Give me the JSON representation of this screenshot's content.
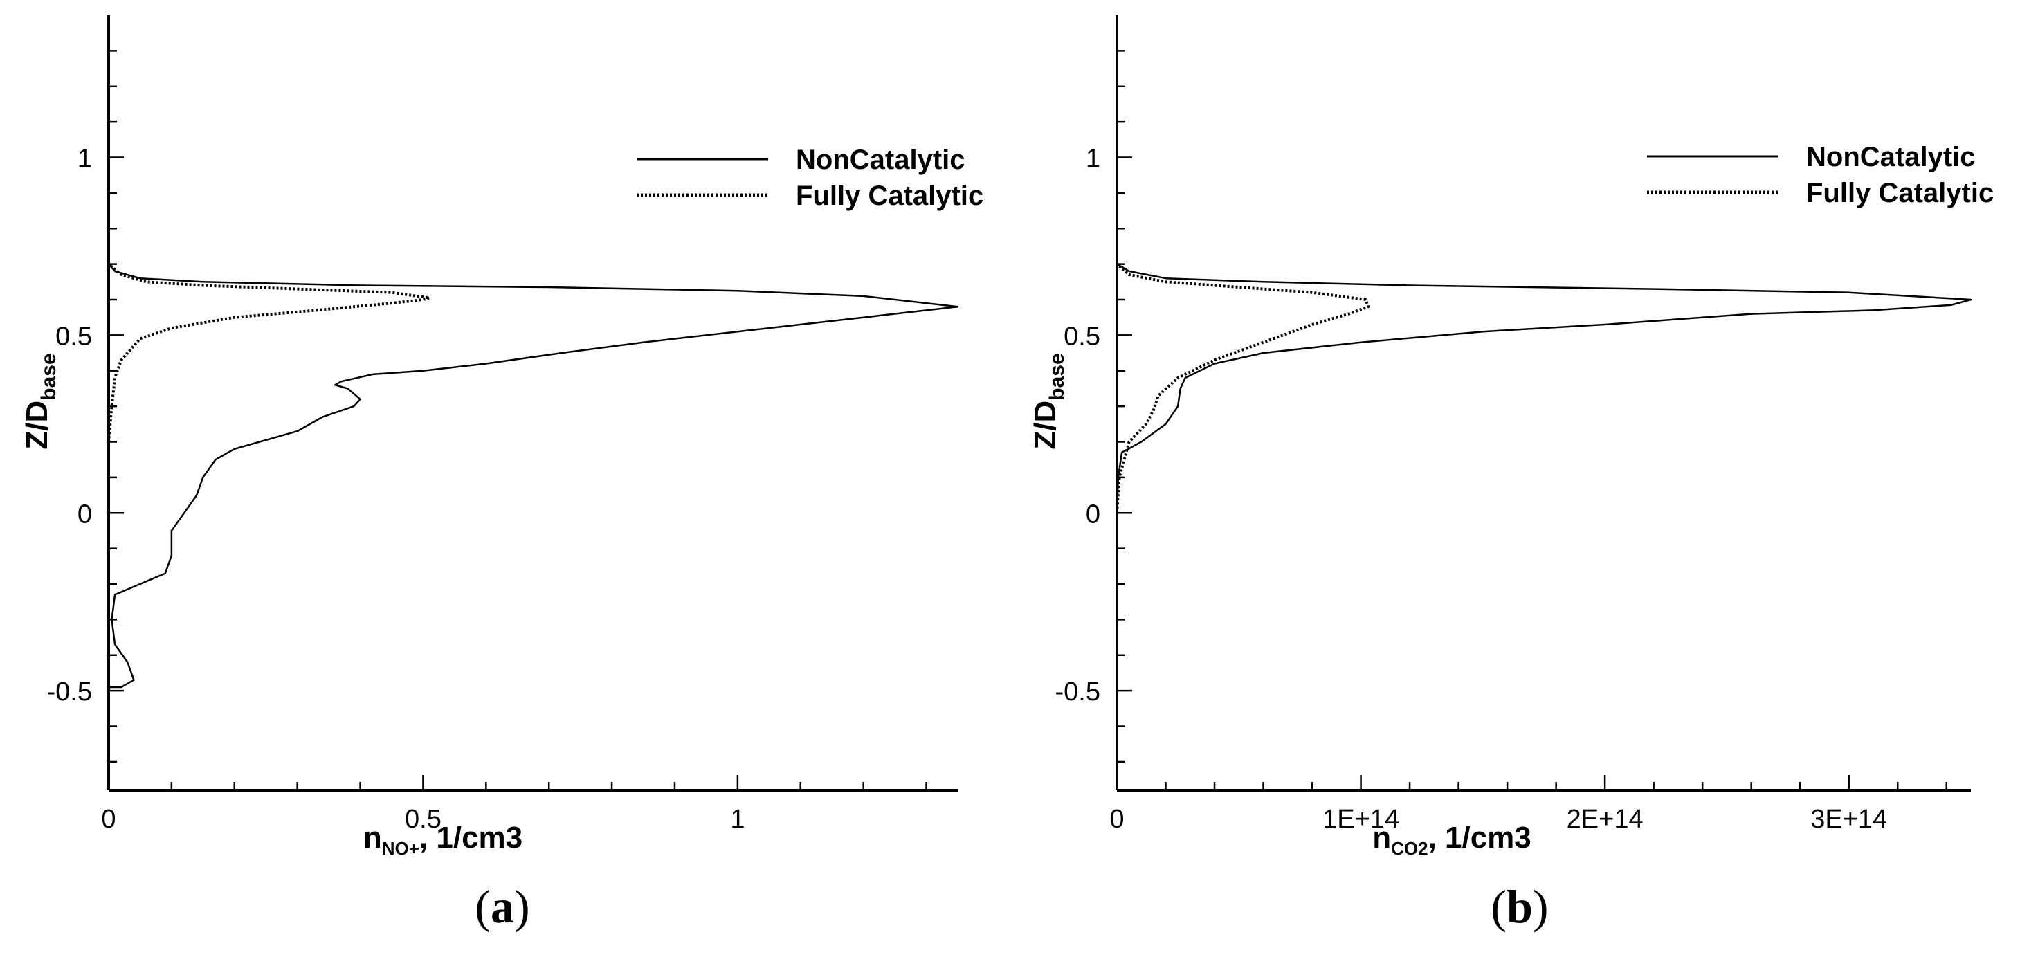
{
  "chart_data": [
    {
      "panel_label": "(a)",
      "type": "line",
      "xlabel_main": "n",
      "xlabel_sub": "NO+",
      "xlabel_rest": ", 1/cm3",
      "ylabel_main": "Z/D",
      "ylabel_sub": "base",
      "xlim": [
        0,
        1.35
      ],
      "ylim": [
        -0.78,
        1.4
      ],
      "xticks": [
        0,
        0.5,
        1
      ],
      "xtick_labels": [
        "0",
        "0.5",
        "1"
      ],
      "yticks": [
        -0.5,
        0,
        0.5,
        1
      ],
      "ytick_labels": [
        "-0.5",
        "0",
        "0.5",
        "1"
      ],
      "legend_position": "top-right",
      "series": [
        {
          "name": "NonCatalytic",
          "style": "solid",
          "points": [
            [
              0.0,
              -0.49
            ],
            [
              0.02,
              -0.49
            ],
            [
              0.04,
              -0.47
            ],
            [
              0.03,
              -0.42
            ],
            [
              0.01,
              -0.37
            ],
            [
              0.005,
              -0.3
            ],
            [
              0.01,
              -0.23
            ],
            [
              0.05,
              -0.2
            ],
            [
              0.09,
              -0.17
            ],
            [
              0.1,
              -0.12
            ],
            [
              0.1,
              -0.05
            ],
            [
              0.12,
              0.0
            ],
            [
              0.14,
              0.05
            ],
            [
              0.15,
              0.1
            ],
            [
              0.17,
              0.15
            ],
            [
              0.2,
              0.18
            ],
            [
              0.26,
              0.21
            ],
            [
              0.3,
              0.23
            ],
            [
              0.34,
              0.27
            ],
            [
              0.39,
              0.3
            ],
            [
              0.4,
              0.32
            ],
            [
              0.38,
              0.35
            ],
            [
              0.36,
              0.36
            ],
            [
              0.37,
              0.37
            ],
            [
              0.42,
              0.39
            ],
            [
              0.5,
              0.4
            ],
            [
              0.6,
              0.42
            ],
            [
              0.72,
              0.45
            ],
            [
              0.85,
              0.48
            ],
            [
              0.95,
              0.5
            ],
            [
              1.05,
              0.52
            ],
            [
              1.2,
              0.55
            ],
            [
              1.3,
              0.57
            ],
            [
              1.35,
              0.58
            ],
            [
              1.2,
              0.61
            ],
            [
              1.0,
              0.625
            ],
            [
              0.7,
              0.635
            ],
            [
              0.4,
              0.64
            ],
            [
              0.15,
              0.65
            ],
            [
              0.05,
              0.66
            ],
            [
              0.01,
              0.68
            ],
            [
              0.0,
              0.7
            ]
          ]
        },
        {
          "name": "Fully Catalytic",
          "style": "dotted",
          "points": [
            [
              0.0,
              -0.49
            ],
            [
              0.0,
              0.0
            ],
            [
              0.0,
              0.2
            ],
            [
              0.005,
              0.3
            ],
            [
              0.01,
              0.38
            ],
            [
              0.02,
              0.43
            ],
            [
              0.05,
              0.49
            ],
            [
              0.1,
              0.52
            ],
            [
              0.2,
              0.55
            ],
            [
              0.33,
              0.57
            ],
            [
              0.45,
              0.59
            ],
            [
              0.5,
              0.6
            ],
            [
              0.51,
              0.605
            ],
            [
              0.45,
              0.62
            ],
            [
              0.3,
              0.63
            ],
            [
              0.15,
              0.64
            ],
            [
              0.06,
              0.65
            ],
            [
              0.02,
              0.67
            ],
            [
              0.0,
              0.7
            ]
          ]
        }
      ]
    },
    {
      "panel_label": "(b)",
      "type": "line",
      "xlabel_main": "n",
      "xlabel_sub": "CO2",
      "xlabel_rest": ", 1/cm3",
      "ylabel_main": "Z/D",
      "ylabel_sub": "base",
      "xlim": [
        0,
        350000000000000.0
      ],
      "ylim": [
        -0.78,
        1.4
      ],
      "xticks": [
        0,
        100000000000000.0,
        200000000000000.0,
        300000000000000.0
      ],
      "xtick_labels": [
        "0",
        "1E+14",
        "2E+14",
        "3E+14"
      ],
      "yticks": [
        -0.5,
        0,
        0.5,
        1
      ],
      "ytick_labels": [
        "-0.5",
        "0",
        "0.5",
        "1"
      ],
      "legend_position": "top-right",
      "series": [
        {
          "name": "NonCatalytic",
          "style": "solid",
          "points": [
            [
              0.0,
              -0.49
            ],
            [
              0.0,
              -0.3
            ],
            [
              0.0,
              0.0
            ],
            [
              500000000000.0,
              0.1
            ],
            [
              2000000000000.0,
              0.17
            ],
            [
              10000000000000.0,
              0.2
            ],
            [
              20000000000000.0,
              0.25
            ],
            [
              25000000000000.0,
              0.3
            ],
            [
              26000000000000.0,
              0.35
            ],
            [
              28000000000000.0,
              0.38
            ],
            [
              40000000000000.0,
              0.42
            ],
            [
              60000000000000.0,
              0.45
            ],
            [
              100000000000000.0,
              0.48
            ],
            [
              150000000000000.0,
              0.51
            ],
            [
              200000000000000.0,
              0.53
            ],
            [
              260000000000000.0,
              0.56
            ],
            [
              310000000000000.0,
              0.57
            ],
            [
              342000000000000.0,
              0.585
            ],
            [
              350000000000000.0,
              0.6
            ],
            [
              300000000000000.0,
              0.62
            ],
            [
              220000000000000.0,
              0.63
            ],
            [
              120000000000000.0,
              0.64
            ],
            [
              60000000000000.0,
              0.65
            ],
            [
              20000000000000.0,
              0.66
            ],
            [
              5000000000000.0,
              0.68
            ],
            [
              0.0,
              0.7
            ]
          ]
        },
        {
          "name": "Fully Catalytic",
          "style": "dotted",
          "points": [
            [
              0.0,
              -0.49
            ],
            [
              0.0,
              0.0
            ],
            [
              1000000000000.0,
              0.1
            ],
            [
              5000000000000.0,
              0.2
            ],
            [
              12000000000000.0,
              0.25
            ],
            [
              15000000000000.0,
              0.29
            ],
            [
              17000000000000.0,
              0.33
            ],
            [
              25000000000000.0,
              0.38
            ],
            [
              40000000000000.0,
              0.43
            ],
            [
              60000000000000.0,
              0.48
            ],
            [
              80000000000000.0,
              0.53
            ],
            [
              95000000000000.0,
              0.56
            ],
            [
              103000000000000.0,
              0.58
            ],
            [
              102000000000000.0,
              0.6
            ],
            [
              80000000000000.0,
              0.62
            ],
            [
              50000000000000.0,
              0.635
            ],
            [
              20000000000000.0,
              0.65
            ],
            [
              5000000000000.0,
              0.67
            ],
            [
              0.0,
              0.7
            ]
          ]
        }
      ]
    }
  ]
}
